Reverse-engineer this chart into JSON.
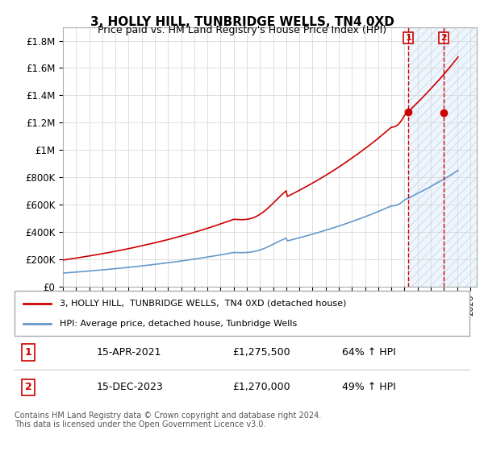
{
  "title": "3, HOLLY HILL, TUNBRIDGE WELLS, TN4 0XD",
  "subtitle": "Price paid vs. HM Land Registry's House Price Index (HPI)",
  "ylabel_ticks": [
    "£0",
    "£200K",
    "£400K",
    "£600K",
    "£800K",
    "£1M",
    "£1.2M",
    "£1.4M",
    "£1.6M",
    "£1.8M"
  ],
  "ytick_vals": [
    0,
    200000,
    400000,
    600000,
    800000,
    1000000,
    1200000,
    1400000,
    1600000,
    1800000
  ],
  "ylim": [
    0,
    1900000
  ],
  "xlim_start": 1995.0,
  "xlim_end": 2026.5,
  "sale1_date": 2021.29,
  "sale1_price": 1275500,
  "sale2_date": 2023.96,
  "sale2_price": 1270000,
  "legend_line1": "3, HOLLY HILL,  TUNBRIDGE WELLS,  TN4 0XD (detached house)",
  "legend_line2": "HPI: Average price, detached house, Tunbridge Wells",
  "table_row1_num": "1",
  "table_row1_date": "15-APR-2021",
  "table_row1_price": "£1,275,500",
  "table_row1_hpi": "64% ↑ HPI",
  "table_row2_num": "2",
  "table_row2_date": "15-DEC-2023",
  "table_row2_price": "£1,270,000",
  "table_row2_hpi": "49% ↑ HPI",
  "footer": "Contains HM Land Registry data © Crown copyright and database right 2024.\nThis data is licensed under the Open Government Licence v3.0.",
  "line_color_red": "#cc0000",
  "line_color_blue": "#6699cc",
  "shade_color": "#ddeeff",
  "dashed_color": "#cc0000",
  "box_color": "#cc0000"
}
